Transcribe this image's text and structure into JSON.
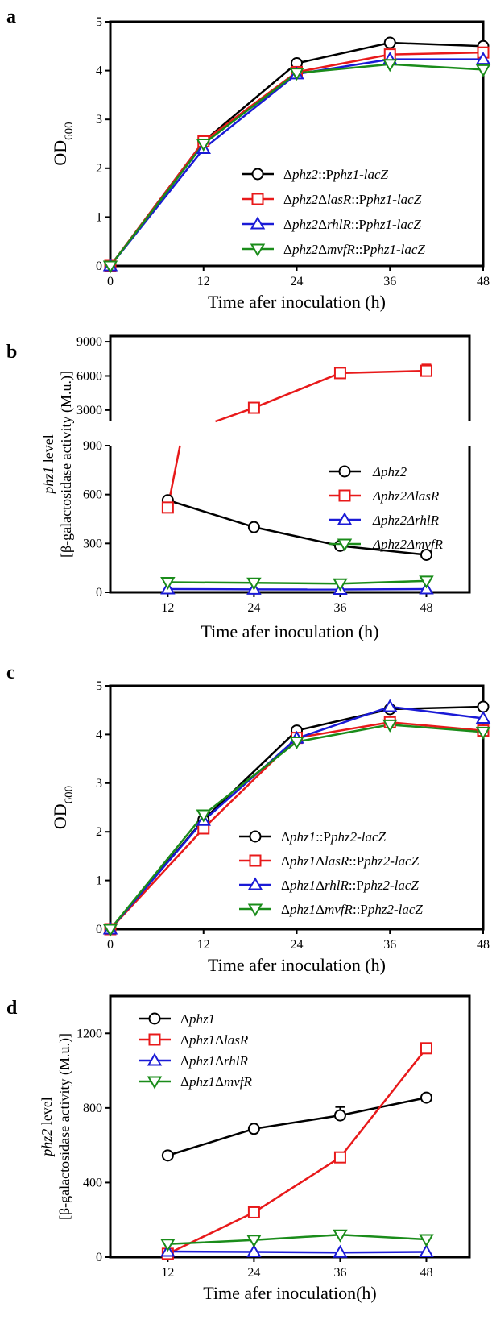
{
  "series_colors": {
    "black": "#000000",
    "red": "#e8191a",
    "blue": "#1a1ad6",
    "green": "#1a8c1a"
  },
  "marker_shapes": [
    "circle",
    "square",
    "triangle-up",
    "triangle-down"
  ],
  "chart_data": [
    {
      "panel_label": "a",
      "type": "line",
      "x": [
        0,
        12,
        24,
        36,
        48
      ],
      "xlim": [
        0,
        48
      ],
      "ylim": [
        0,
        5
      ],
      "xticks": [
        "0",
        "12",
        "24",
        "36",
        "48"
      ],
      "yticks": [
        "0",
        "1",
        "2",
        "3",
        "4",
        "5"
      ],
      "xlabel": "Time afer inoculation (h)",
      "ylabel": {
        "main": "OD",
        "sub": "600"
      },
      "legend_position": "bottom-right",
      "series": [
        {
          "name": "Δphz2::Pphz1-lacZ",
          "values": [
            0,
            2.55,
            4.15,
            4.57,
            4.5
          ]
        },
        {
          "name": "Δphz2ΔlasR::Pphz1-lacZ",
          "values": [
            0,
            2.55,
            3.97,
            4.33,
            4.37
          ]
        },
        {
          "name": "Δphz2ΔrhlR::Pphz1-lacZ",
          "values": [
            0,
            2.4,
            3.93,
            4.23,
            4.23
          ]
        },
        {
          "name": "Δphz2ΔmvfR::Pphz1-lacZ",
          "values": [
            0,
            2.5,
            3.95,
            4.13,
            4.02
          ]
        }
      ]
    },
    {
      "panel_label": "b",
      "type": "line",
      "x": [
        12,
        24,
        36,
        48
      ],
      "xticks": [
        "12",
        "24",
        "36",
        "48"
      ],
      "y_lower_ticks": [
        "0",
        "300",
        "600",
        "900"
      ],
      "y_upper_ticks": [
        "3000",
        "6000",
        "9000"
      ],
      "y_lower_range": [
        0,
        900
      ],
      "y_upper_range": [
        2000,
        9500
      ],
      "y_axis_break": true,
      "xlabel": "Time afer inoculation (h)",
      "ylabel": {
        "line1": "phz1 level",
        "line2": "[β-galactosidase activity (M.u.)]"
      },
      "legend_position": "right",
      "series": [
        {
          "name": "Δphz2",
          "values": [
            565,
            400,
            285,
            230
          ]
        },
        {
          "name": "Δphz2ΔlasR",
          "values": [
            520,
            3200,
            6250,
            6450
          ],
          "error_last": 550
        },
        {
          "name": "Δphz2ΔrhlR",
          "values": [
            20,
            18,
            17,
            20
          ]
        },
        {
          "name": "Δphz2ΔmvfR",
          "values": [
            62,
            58,
            53,
            70
          ]
        }
      ]
    },
    {
      "panel_label": "c",
      "type": "line",
      "x": [
        0,
        12,
        24,
        36,
        48
      ],
      "xlim": [
        0,
        48
      ],
      "ylim": [
        0,
        5
      ],
      "xticks": [
        "0",
        "12",
        "24",
        "36",
        "48"
      ],
      "yticks": [
        "0",
        "1",
        "2",
        "3",
        "4",
        "5"
      ],
      "xlabel": "Time afer inoculation (h)",
      "ylabel": {
        "main": "OD",
        "sub": "600"
      },
      "legend_position": "bottom-right",
      "series": [
        {
          "name": "Δphz1::Pphz2-lacZ",
          "values": [
            0,
            2.25,
            4.08,
            4.52,
            4.57
          ]
        },
        {
          "name": "Δphz1ΔlasR::Pphz2-lacZ",
          "values": [
            0,
            2.07,
            3.93,
            4.25,
            4.08
          ]
        },
        {
          "name": "Δphz1ΔrhlR::Pphz2-lacZ",
          "values": [
            0,
            2.23,
            3.92,
            4.57,
            4.33
          ]
        },
        {
          "name": "Δphz1ΔmvfR::Pphz2-lacZ",
          "values": [
            0,
            2.35,
            3.85,
            4.2,
            4.05
          ]
        }
      ]
    },
    {
      "panel_label": "d",
      "type": "line",
      "x": [
        12,
        24,
        36,
        48
      ],
      "ylim": [
        0,
        1400
      ],
      "xticks": [
        "12",
        "24",
        "36",
        "48"
      ],
      "yticks": [
        "0",
        "400",
        "800",
        "1200"
      ],
      "xlabel": "Time afer inoculation(h)",
      "ylabel": {
        "line1": "phz2 level",
        "line2": "[β-galactosidase activity (M.u.)]"
      },
      "legend_position": "top-left",
      "series": [
        {
          "name": "Δphz1",
          "values": [
            545,
            688,
            760,
            855
          ],
          "error_36": 45
        },
        {
          "name": "Δphz1ΔlasR",
          "values": [
            18,
            240,
            535,
            1120
          ]
        },
        {
          "name": "Δphz1ΔrhlR",
          "values": [
            30,
            28,
            25,
            28
          ]
        },
        {
          "name": "Δphz1ΔmvfR",
          "values": [
            70,
            92,
            120,
            95
          ]
        }
      ]
    }
  ]
}
